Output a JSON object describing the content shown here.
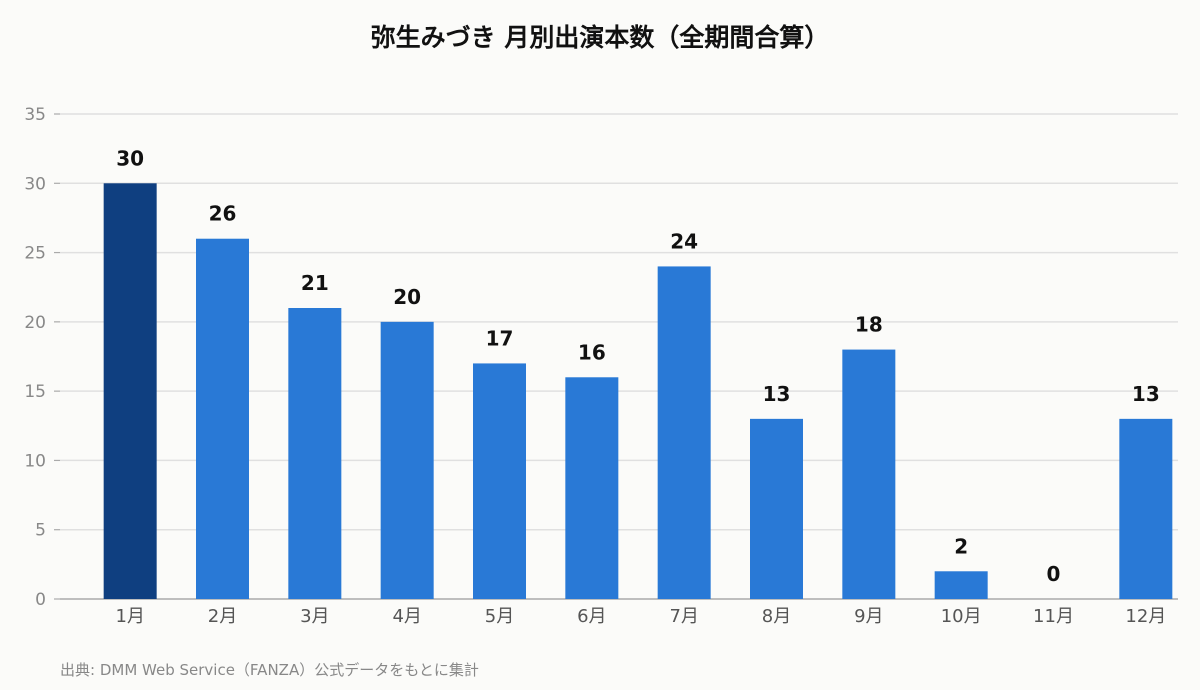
{
  "chart_data": {
    "type": "bar",
    "title": "弥生みづき 月別出演本数（全期間合算）",
    "categories": [
      "1月",
      "2月",
      "3月",
      "4月",
      "5月",
      "6月",
      "7月",
      "8月",
      "9月",
      "10月",
      "11月",
      "12月"
    ],
    "values": [
      30,
      26,
      21,
      20,
      17,
      16,
      24,
      13,
      18,
      2,
      0,
      13
    ],
    "xlabel": "",
    "ylabel": "",
    "ylim": [
      0,
      35
    ],
    "yticks": [
      0,
      5,
      10,
      15,
      20,
      25,
      30,
      35
    ],
    "grid": true,
    "data_labels": true,
    "highlight_index": 0,
    "colors": {
      "bar": "#2979d6",
      "highlight": "#0f3f80",
      "grid": "#e0e0e0",
      "axis": "#aaaaaa",
      "tick_text": "#888888",
      "category_text": "#555555",
      "value_text": "#111111"
    }
  },
  "source": "出典: DMM Web Service（FANZA）公式データをもとに集計"
}
